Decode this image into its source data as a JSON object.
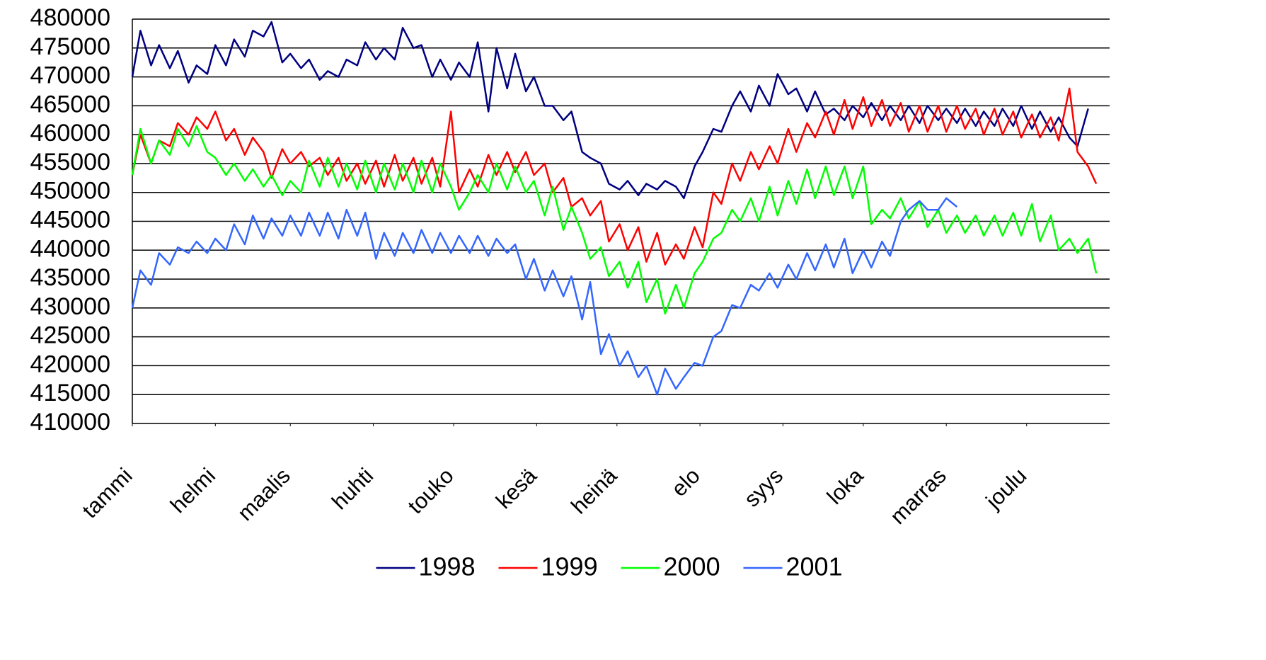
{
  "chart_data": {
    "type": "line",
    "x": [
      1,
      4,
      8,
      11,
      15,
      18,
      22,
      25,
      29,
      32,
      36,
      39,
      43,
      46,
      50,
      53,
      57,
      60,
      64,
      67,
      71,
      74,
      78,
      81,
      85,
      88,
      92,
      95,
      99,
      102,
      106,
      109,
      113,
      116,
      120,
      123,
      127,
      130,
      134,
      137,
      141,
      144,
      148,
      151,
      155,
      158,
      162,
      165,
      169,
      172,
      176,
      179,
      183,
      186,
      190,
      193,
      197,
      200,
      204,
      207,
      211,
      214,
      218,
      221,
      225,
      228,
      232,
      235,
      239,
      242,
      246,
      249,
      253,
      256,
      260,
      263,
      267,
      270,
      274,
      277,
      281,
      284,
      288,
      291,
      295,
      298,
      302,
      305,
      309,
      312,
      316,
      319,
      323,
      326,
      330,
      333,
      337,
      340,
      344,
      347,
      351,
      354,
      358,
      361
    ],
    "xlim": [
      1,
      366
    ],
    "xticks": [
      {
        "value": 1,
        "label": "tammi"
      },
      {
        "value": 32,
        "label": "helmi"
      },
      {
        "value": 60,
        "label": "maalis"
      },
      {
        "value": 91,
        "label": "huhti"
      },
      {
        "value": 121,
        "label": "touko"
      },
      {
        "value": 152,
        "label": "kesä"
      },
      {
        "value": 182,
        "label": "heinä"
      },
      {
        "value": 213,
        "label": "elo"
      },
      {
        "value": 244,
        "label": "syys"
      },
      {
        "value": 274,
        "label": "loka"
      },
      {
        "value": 305,
        "label": "marras"
      },
      {
        "value": 335,
        "label": "joulu"
      }
    ],
    "ylim": [
      410000,
      480000
    ],
    "yticks": [
      410000,
      415000,
      420000,
      425000,
      430000,
      435000,
      440000,
      445000,
      450000,
      455000,
      460000,
      465000,
      470000,
      475000,
      480000
    ],
    "grid": true,
    "legend": "bottom",
    "series": [
      {
        "name": "1998",
        "color": "#000080",
        "values": [
          470000,
          478000,
          472000,
          475500,
          471500,
          474500,
          469000,
          472000,
          470500,
          475500,
          472000,
          476500,
          473500,
          478000,
          477000,
          479500,
          472500,
          474000,
          471500,
          473000,
          469500,
          471000,
          470000,
          473000,
          472000,
          476000,
          473000,
          475000,
          473000,
          478500,
          475000,
          475500,
          470000,
          473000,
          469500,
          472500,
          470000,
          476000,
          464000,
          475000,
          468000,
          474000,
          467500,
          470000,
          465000,
          465000,
          462500,
          464000,
          457000,
          456000,
          455000,
          451500,
          450500,
          452000,
          449500,
          451500,
          450500,
          452000,
          451000,
          449000,
          454500,
          457000,
          461000,
          460500,
          465000,
          467500,
          464000,
          468500,
          465000,
          470500,
          467000,
          468000,
          464000,
          467500,
          463500,
          464500,
          462500,
          465000,
          463000,
          465500,
          462500,
          465000,
          462500,
          465000,
          462000,
          465000,
          462500,
          464500,
          462000,
          464500,
          461500,
          464000,
          461500,
          464500,
          461500,
          465000,
          461000,
          464000,
          460500,
          463000,
          459500,
          458000,
          464500,
          null
        ]
      },
      {
        "name": "1999",
        "color": "#ff0000",
        "values": [
          453000,
          460000,
          455000,
          459000,
          458000,
          462000,
          460000,
          463000,
          461000,
          464000,
          459000,
          461000,
          456500,
          459500,
          457000,
          452500,
          457500,
          455000,
          457000,
          454500,
          456000,
          453000,
          456000,
          452000,
          455000,
          451500,
          455500,
          451000,
          456500,
          452000,
          456000,
          451500,
          456000,
          451000,
          464000,
          450000,
          454000,
          451000,
          456500,
          453000,
          457000,
          453500,
          457000,
          453000,
          455000,
          450000,
          452500,
          447500,
          449000,
          446000,
          448500,
          441500,
          444500,
          440000,
          444000,
          438000,
          443000,
          437500,
          441000,
          438500,
          444000,
          440500,
          450000,
          448000,
          455000,
          452000,
          457000,
          454000,
          458000,
          455000,
          461000,
          457000,
          462000,
          459500,
          464000,
          460000,
          466000,
          461000,
          466500,
          461500,
          466000,
          461500,
          465500,
          460500,
          465000,
          460500,
          465000,
          460500,
          465000,
          461000,
          464500,
          460000,
          464500,
          460000,
          464000,
          459500,
          463500,
          459500,
          463000,
          459000,
          468000,
          457000,
          454500,
          451500
        ]
      },
      {
        "name": "2000",
        "color": "#00ff00",
        "values": [
          453000,
          461000,
          455000,
          459000,
          456500,
          461000,
          458000,
          461500,
          457000,
          456000,
          453000,
          455000,
          452000,
          454000,
          451000,
          453000,
          449500,
          452000,
          450000,
          455500,
          451000,
          456000,
          451000,
          455000,
          450500,
          455500,
          450000,
          455000,
          450500,
          455000,
          450000,
          455500,
          450000,
          455000,
          451000,
          447000,
          450000,
          453000,
          450000,
          455000,
          450500,
          454500,
          450000,
          452000,
          446000,
          451000,
          443500,
          447500,
          443000,
          438500,
          440500,
          435500,
          438000,
          433500,
          438000,
          431000,
          435000,
          429000,
          434000,
          430000,
          436000,
          438000,
          442000,
          443000,
          447000,
          445000,
          449000,
          445000,
          451000,
          446000,
          452000,
          448000,
          454000,
          449000,
          454500,
          449500,
          454500,
          449000,
          454500,
          444500,
          447000,
          445500,
          449000,
          445500,
          448500,
          444000,
          447000,
          443000,
          446000,
          443000,
          446000,
          442500,
          446000,
          442500,
          446500,
          442500,
          448000,
          441500,
          446000,
          440000,
          442000,
          439500,
          442000,
          436000
        ]
      },
      {
        "name": "2001",
        "color": "#3366ff",
        "values": [
          430000,
          436500,
          434000,
          439500,
          437500,
          440500,
          439500,
          441500,
          439500,
          442000,
          440000,
          444500,
          441000,
          446000,
          442000,
          445500,
          442500,
          446000,
          442500,
          446500,
          442500,
          446500,
          442000,
          447000,
          442500,
          446500,
          438500,
          443000,
          439000,
          443000,
          439500,
          443500,
          439500,
          443000,
          439500,
          442500,
          439500,
          442500,
          439000,
          442000,
          439500,
          441000,
          435000,
          438500,
          433000,
          436500,
          432000,
          435500,
          428000,
          434500,
          422000,
          425500,
          420000,
          422500,
          418000,
          420000,
          415000,
          419500,
          416000,
          418000,
          420500,
          420000,
          425000,
          426000,
          430500,
          430000,
          434000,
          433000,
          436000,
          433500,
          437500,
          435000,
          439500,
          436500,
          441000,
          437000,
          442000,
          436000,
          440000,
          437000,
          441500,
          439000,
          445000,
          447000,
          448500,
          447000,
          447000,
          449000,
          447500,
          null,
          null,
          null,
          null,
          null,
          null,
          null,
          null,
          null,
          null,
          null,
          null,
          null,
          null,
          null
        ]
      }
    ]
  }
}
